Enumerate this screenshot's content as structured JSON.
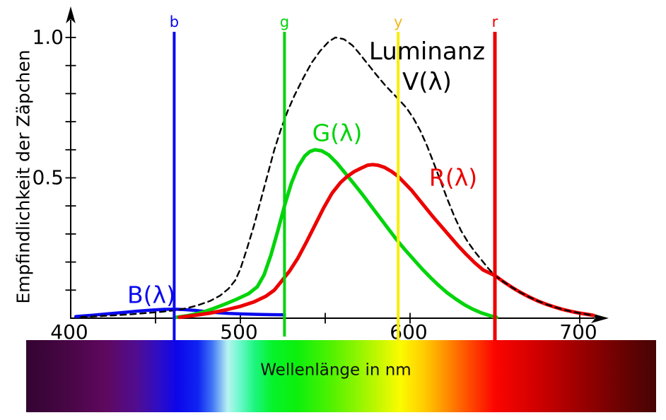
{
  "chart_data": {
    "type": "line",
    "title": "",
    "xlabel": "Wellenlänge in nm",
    "ylabel": "Empfindlichkeit der Zäpchen",
    "x_unit": "nm",
    "xlim_nm": [
      400,
      710
    ],
    "ylim": [
      0,
      1.05
    ],
    "grid": false,
    "x_major_ticks": [
      {
        "nm": 400,
        "label": "400"
      },
      {
        "nm": 500,
        "label": "500"
      },
      {
        "nm": 600,
        "label": "600"
      },
      {
        "nm": 700,
        "label": "700"
      }
    ],
    "x_minor_ticks_nm": [
      450,
      550,
      650
    ],
    "y_ticks": [
      {
        "value": 1.0,
        "label": "1.0"
      },
      {
        "value": 0.5,
        "label": "0.5"
      }
    ],
    "y_minor_tick_step": 0.1,
    "annotations": {
      "b_curve": {
        "text": "B(λ)",
        "color": "#0a0aee"
      },
      "g_curve": {
        "text": "G(λ)",
        "color": "#00d40a"
      },
      "r_curve": {
        "text": "R(λ)",
        "color": "#ec0000"
      },
      "luminance_line1": {
        "text": "Luminanz",
        "color": "#000000"
      },
      "luminance_line2": {
        "text": "V(λ)",
        "color": "#000000"
      }
    },
    "marker_lines": [
      {
        "id": "b",
        "label": "b",
        "wavelength_nm": 461,
        "color": "#0909ef",
        "label_color": "#0909ef",
        "width": 4
      },
      {
        "id": "g",
        "label": "g",
        "wavelength_nm": 526,
        "color": "#00d40a",
        "label_color": "#00d40a",
        "width": 4
      },
      {
        "id": "y",
        "label": "y",
        "wavelength_nm": 593,
        "color": "#f8ee00",
        "label_color": "#f0b81c",
        "width": 4
      },
      {
        "id": "r",
        "label": "r",
        "wavelength_nm": 650,
        "color": "#ec0000",
        "label_color": "#ec0000",
        "width": 5
      }
    ],
    "series": [
      {
        "name": "B(λ)",
        "id": "B",
        "color": "#0a0aee",
        "style": "solid",
        "points": [
          [
            403,
            0.006
          ],
          [
            412,
            0.01
          ],
          [
            421,
            0.015
          ],
          [
            430,
            0.02
          ],
          [
            439,
            0.025
          ],
          [
            448,
            0.029
          ],
          [
            455,
            0.0315
          ],
          [
            461,
            0.032
          ],
          [
            467,
            0.0305
          ],
          [
            473,
            0.028
          ],
          [
            479,
            0.024
          ],
          [
            486,
            0.02
          ],
          [
            493,
            0.017
          ],
          [
            501,
            0.015
          ],
          [
            510,
            0.0135
          ],
          [
            518,
            0.0125
          ],
          [
            526,
            0.012
          ]
        ]
      },
      {
        "name": "G(λ)",
        "id": "G",
        "color": "#00d40a",
        "style": "solid",
        "points": [
          [
            461,
            0.002
          ],
          [
            469,
            0.009
          ],
          [
            477,
            0.02
          ],
          [
            484,
            0.034
          ],
          [
            491,
            0.05
          ],
          [
            498,
            0.068
          ],
          [
            505,
            0.088
          ],
          [
            510,
            0.112
          ],
          [
            514,
            0.155
          ],
          [
            518,
            0.225
          ],
          [
            522,
            0.31
          ],
          [
            526,
            0.4
          ],
          [
            530,
            0.48
          ],
          [
            534,
            0.54
          ],
          [
            538,
            0.578
          ],
          [
            541,
            0.594
          ],
          [
            544,
            0.6
          ],
          [
            548,
            0.596
          ],
          [
            552,
            0.582
          ],
          [
            557,
            0.552
          ],
          [
            562,
            0.515
          ],
          [
            567,
            0.478
          ],
          [
            572,
            0.44
          ],
          [
            577,
            0.4
          ],
          [
            582,
            0.36
          ],
          [
            587,
            0.32
          ],
          [
            592,
            0.28
          ],
          [
            597,
            0.244
          ],
          [
            602,
            0.21
          ],
          [
            607,
            0.176
          ],
          [
            612,
            0.145
          ],
          [
            617,
            0.116
          ],
          [
            622,
            0.09
          ],
          [
            627,
            0.068
          ],
          [
            632,
            0.048
          ],
          [
            637,
            0.032
          ],
          [
            642,
            0.019
          ],
          [
            647,
            0.009
          ],
          [
            651,
            0.003
          ]
        ]
      },
      {
        "name": "R(λ)",
        "id": "R",
        "color": "#ec0000",
        "style": "solid",
        "points": [
          [
            464,
            0.003
          ],
          [
            473,
            0.01
          ],
          [
            482,
            0.018
          ],
          [
            491,
            0.029
          ],
          [
            500,
            0.042
          ],
          [
            508,
            0.058
          ],
          [
            515,
            0.078
          ],
          [
            520,
            0.1
          ],
          [
            524,
            0.13
          ],
          [
            529,
            0.168
          ],
          [
            534,
            0.215
          ],
          [
            539,
            0.272
          ],
          [
            544,
            0.332
          ],
          [
            549,
            0.392
          ],
          [
            554,
            0.445
          ],
          [
            559,
            0.483
          ],
          [
            563,
            0.505
          ],
          [
            567,
            0.522
          ],
          [
            571,
            0.534
          ],
          [
            575,
            0.545
          ],
          [
            578,
            0.547
          ],
          [
            581,
            0.545
          ],
          [
            585,
            0.537
          ],
          [
            589,
            0.523
          ],
          [
            593,
            0.505
          ],
          [
            597,
            0.48
          ],
          [
            601,
            0.455
          ],
          [
            605,
            0.425
          ],
          [
            609,
            0.395
          ],
          [
            613,
            0.365
          ],
          [
            618,
            0.33
          ],
          [
            623,
            0.295
          ],
          [
            628,
            0.26
          ],
          [
            633,
            0.228
          ],
          [
            638,
            0.198
          ],
          [
            643,
            0.172
          ],
          [
            650,
            0.152
          ],
          [
            655,
            0.13
          ],
          [
            660,
            0.11
          ],
          [
            665,
            0.092
          ],
          [
            670,
            0.076
          ],
          [
            675,
            0.062
          ],
          [
            680,
            0.05
          ],
          [
            685,
            0.04
          ],
          [
            690,
            0.031
          ],
          [
            695,
            0.024
          ],
          [
            700,
            0.018
          ],
          [
            704,
            0.014
          ],
          [
            708,
            0.01
          ]
        ]
      },
      {
        "name": "Luminanz V(λ)",
        "id": "V",
        "color": "#000000",
        "style": "dashed",
        "points": [
          [
            406,
            0.004
          ],
          [
            416,
            0.007
          ],
          [
            426,
            0.01
          ],
          [
            436,
            0.014
          ],
          [
            446,
            0.019
          ],
          [
            454,
            0.023
          ],
          [
            461,
            0.028
          ],
          [
            468,
            0.035
          ],
          [
            475,
            0.046
          ],
          [
            482,
            0.061
          ],
          [
            488,
            0.08
          ],
          [
            493,
            0.105
          ],
          [
            497,
            0.135
          ],
          [
            500,
            0.175
          ],
          [
            504,
            0.25
          ],
          [
            508,
            0.33
          ],
          [
            512,
            0.42
          ],
          [
            516,
            0.51
          ],
          [
            520,
            0.6
          ],
          [
            524,
            0.675
          ],
          [
            528,
            0.74
          ],
          [
            532,
            0.795
          ],
          [
            537,
            0.855
          ],
          [
            542,
            0.91
          ],
          [
            547,
            0.952
          ],
          [
            552,
            0.985
          ],
          [
            556,
            1.0
          ],
          [
            561,
            0.994
          ],
          [
            566,
            0.972
          ],
          [
            570,
            0.944
          ],
          [
            575,
            0.906
          ],
          [
            580,
            0.868
          ],
          [
            585,
            0.832
          ],
          [
            590,
            0.8
          ],
          [
            594,
            0.775
          ],
          [
            598,
            0.748
          ],
          [
            602,
            0.712
          ],
          [
            606,
            0.668
          ],
          [
            610,
            0.614
          ],
          [
            614,
            0.552
          ],
          [
            618,
            0.488
          ],
          [
            622,
            0.424
          ],
          [
            626,
            0.364
          ],
          [
            630,
            0.312
          ],
          [
            634,
            0.272
          ],
          [
            638,
            0.238
          ],
          [
            642,
            0.208
          ],
          [
            646,
            0.178
          ],
          [
            650,
            0.152
          ],
          [
            655,
            0.13
          ],
          [
            660,
            0.11
          ],
          [
            665,
            0.092
          ],
          [
            670,
            0.076
          ],
          [
            675,
            0.062
          ],
          [
            680,
            0.05
          ],
          [
            685,
            0.04
          ],
          [
            690,
            0.031
          ],
          [
            695,
            0.024
          ],
          [
            700,
            0.018
          ],
          [
            704,
            0.014
          ],
          [
            708,
            0.01
          ]
        ]
      }
    ],
    "spectrum_bar": {
      "stops": [
        [
          0.0,
          "#330432"
        ],
        [
          0.071,
          "#4a0647"
        ],
        [
          0.127,
          "#5f085f"
        ],
        [
          0.177,
          "#4f0d93"
        ],
        [
          0.211,
          "#2d0dc6"
        ],
        [
          0.239,
          "#0d06e9"
        ],
        [
          0.273,
          "#0f24f3"
        ],
        [
          0.295,
          "#3f74f7"
        ],
        [
          0.32,
          "#b8f3f1"
        ],
        [
          0.34,
          "#68f9c8"
        ],
        [
          0.363,
          "#1cf57e"
        ],
        [
          0.391,
          "#06f32a"
        ],
        [
          0.43,
          "#0cf00c"
        ],
        [
          0.486,
          "#52f200"
        ],
        [
          0.542,
          "#a8f600"
        ],
        [
          0.594,
          "#fbfb00"
        ],
        [
          0.632,
          "#ffcc00"
        ],
        [
          0.666,
          "#ff9000"
        ],
        [
          0.705,
          "#ff4800"
        ],
        [
          0.744,
          "#fb0500"
        ],
        [
          0.811,
          "#d00000"
        ],
        [
          0.879,
          "#9c0000"
        ],
        [
          0.946,
          "#6a0202"
        ],
        [
          1.0,
          "#460404"
        ]
      ]
    }
  }
}
